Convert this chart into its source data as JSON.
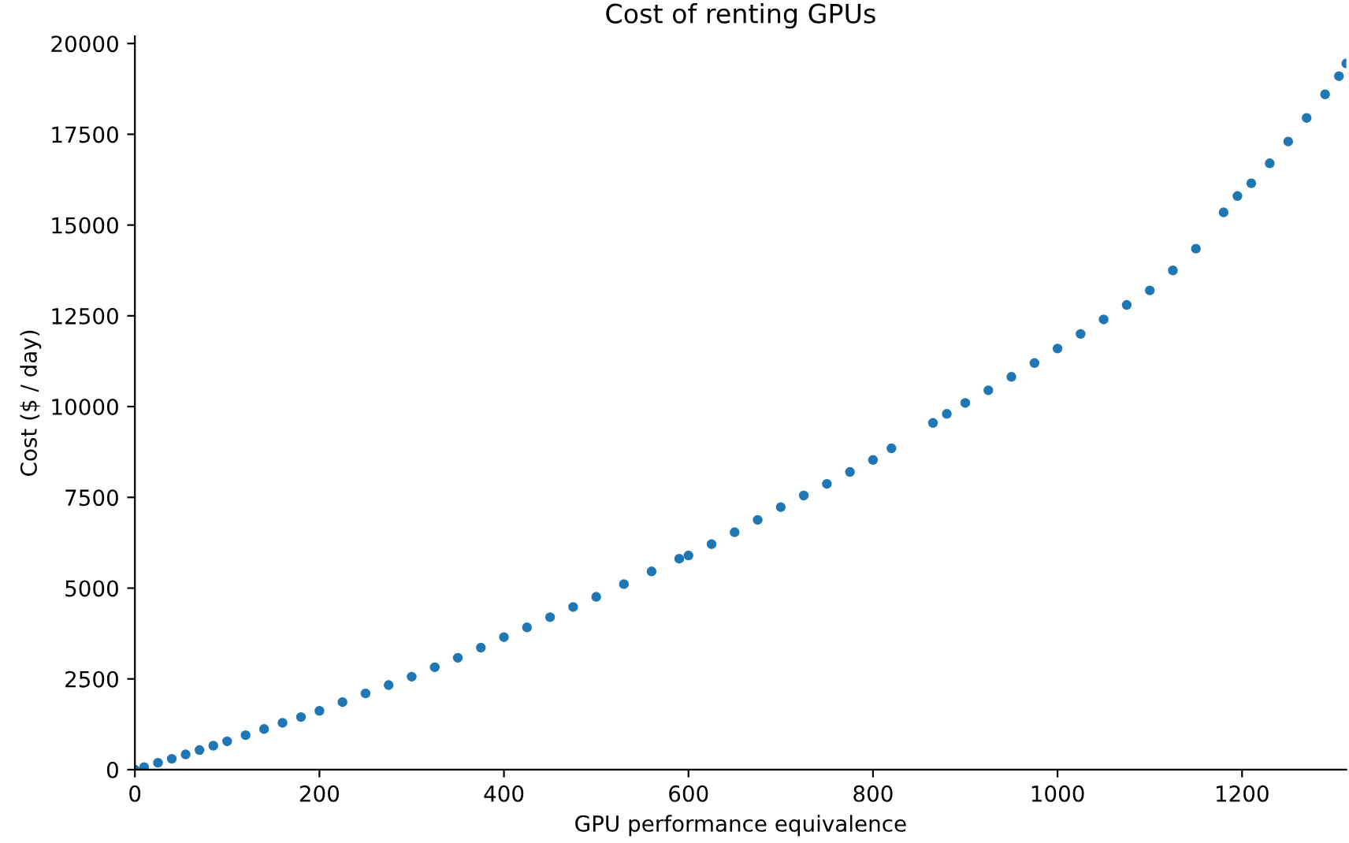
{
  "chart_data": {
    "type": "scatter",
    "title": "Cost of renting GPUs",
    "xlabel": "GPU performance equivalence",
    "ylabel": "Cost ($ / day)",
    "x": [
      0,
      10,
      25,
      40,
      55,
      70,
      85,
      100,
      120,
      140,
      160,
      180,
      200,
      225,
      250,
      275,
      300,
      325,
      350,
      375,
      400,
      425,
      450,
      475,
      500,
      530,
      560,
      590,
      600,
      625,
      650,
      675,
      700,
      725,
      750,
      775,
      800,
      820,
      865,
      880,
      900,
      925,
      950,
      975,
      1000,
      1025,
      1050,
      1075,
      1100,
      1125,
      1150,
      1180,
      1195,
      1210,
      1230,
      1250,
      1270,
      1290,
      1305,
      1313
    ],
    "series": [
      {
        "color": "#1f77b4",
        "values": [
          0,
          70,
          190,
          300,
          420,
          540,
          660,
          780,
          950,
          1120,
          1290,
          1450,
          1620,
          1860,
          2100,
          2330,
          2560,
          2820,
          3080,
          3360,
          3650,
          3920,
          4200,
          4480,
          4760,
          5110,
          5460,
          5810,
          5900,
          6210,
          6540,
          6880,
          7230,
          7550,
          7870,
          8200,
          8530,
          8850,
          9550,
          9800,
          10100,
          10450,
          10820,
          11200,
          11600,
          12000,
          12400,
          12800,
          13200,
          13750,
          14350,
          15350,
          15800,
          16150,
          16700,
          17300,
          17950,
          18600,
          19100,
          19450
        ]
      }
    ],
    "xlim": [
      0,
      1313
    ],
    "ylim": [
      0,
      20200
    ],
    "xticks": [
      0,
      200,
      400,
      600,
      800,
      1000,
      1200
    ],
    "yticks": [
      0,
      2500,
      5000,
      7500,
      10000,
      12500,
      15000,
      17500,
      20000
    ],
    "marker": "circle",
    "grid": false
  }
}
